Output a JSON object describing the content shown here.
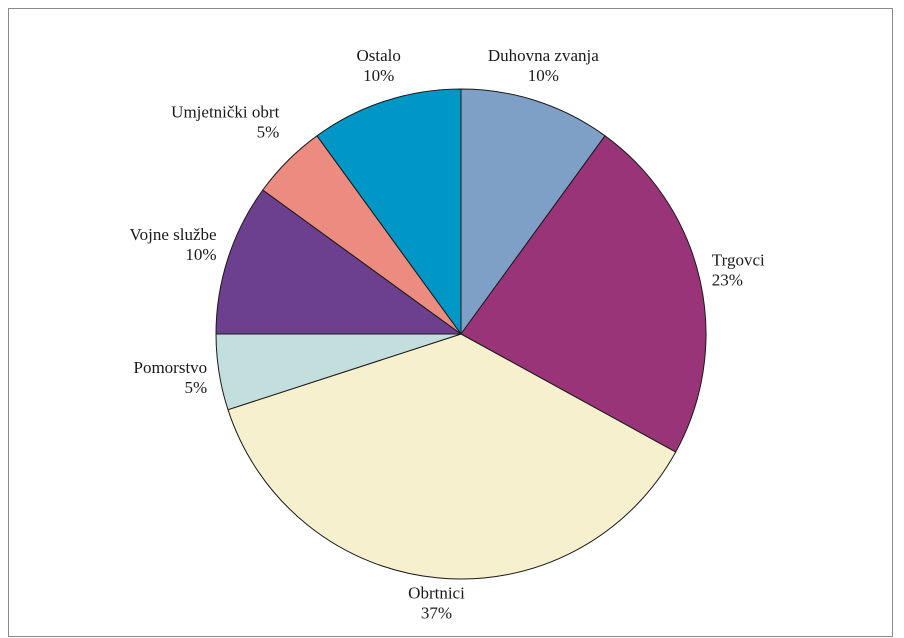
{
  "chart_data": {
    "type": "pie",
    "title": "",
    "start_angle_deg": 0,
    "direction": "clockwise",
    "slices": [
      {
        "label": "Duhovna zvanja",
        "value": 10,
        "value_label": "10%",
        "color": "#7e9fc6"
      },
      {
        "label": "Trgovci",
        "value": 23,
        "value_label": "23%",
        "color": "#993478"
      },
      {
        "label": "Obrtnici",
        "value": 37,
        "value_label": "37%",
        "color": "#f7f0cf"
      },
      {
        "label": "Pomorstvo",
        "value": 5,
        "value_label": "5%",
        "color": "#c2dedd"
      },
      {
        "label": "Vojne službe",
        "value": 10,
        "value_label": "10%",
        "color": "#6d3f8f"
      },
      {
        "label": "Umjetnički obrt",
        "value": 5,
        "value_label": "5%",
        "color": "#ec8b80"
      },
      {
        "label": "Ostalo",
        "value": 10,
        "value_label": "10%",
        "color": "#0097c6"
      }
    ],
    "legend": "none",
    "labels_outside": true
  }
}
